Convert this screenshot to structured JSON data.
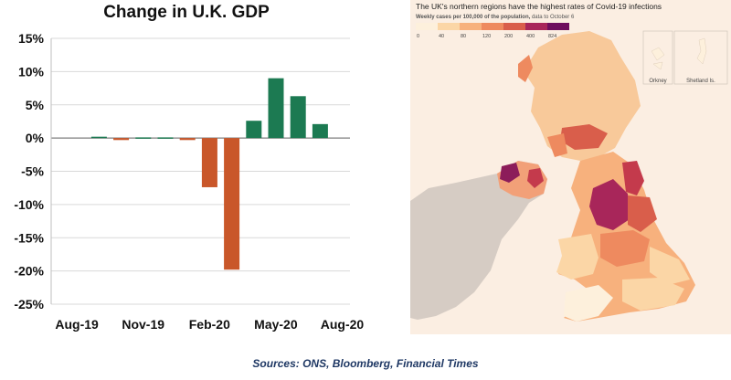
{
  "chart_data": [
    {
      "type": "bar",
      "title": "Change in U.K. GDP",
      "xlabel": "",
      "ylabel": "",
      "ylim": [
        -25,
        15
      ],
      "yticks": [
        15,
        10,
        5,
        0,
        -5,
        -10,
        -15,
        -20,
        -25
      ],
      "ytick_labels": [
        "15%",
        "10%",
        "5%",
        "0%",
        "-5%",
        "-10%",
        "-15%",
        "-20%",
        "-25%"
      ],
      "categories": [
        "Aug-19",
        "Sep-19",
        "Oct-19",
        "Nov-19",
        "Dec-19",
        "Jan-20",
        "Feb-20",
        "Mar-20",
        "Apr-20",
        "May-20",
        "Jun-20",
        "Jul-20",
        "Aug-20"
      ],
      "xtick_labels": [
        "Aug-19",
        "Nov-19",
        "Feb-20",
        "May-20",
        "Aug-20"
      ],
      "values": [
        0.0,
        0.2,
        -0.3,
        0.1,
        0.1,
        -0.3,
        -7.4,
        -19.8,
        2.6,
        9.0,
        6.3,
        2.1,
        0.0
      ],
      "positive_color": "#1c7a52",
      "negative_color": "#c9572a",
      "grid": true,
      "legend": "none"
    },
    {
      "type": "heatmap",
      "title": "The UK's northern regions have the highest rates of Covid-19 infections",
      "subtitle_bold": "Weekly cases per 100,000 of the population,",
      "subtitle_rest": " data to October 6",
      "legend_ticks": [
        "0",
        "40",
        "80",
        "120",
        "200",
        "400",
        "824"
      ],
      "legend_colors": [
        "#fdf0dc",
        "#fbd6a6",
        "#f7b17d",
        "#ee8a5f",
        "#d95e4b",
        "#a8265a",
        "#6e0e5e"
      ],
      "insets": [
        "Orkney",
        "Shetland Is."
      ]
    }
  ],
  "sources": "Sources: ONS, Bloomberg, Financial Times"
}
